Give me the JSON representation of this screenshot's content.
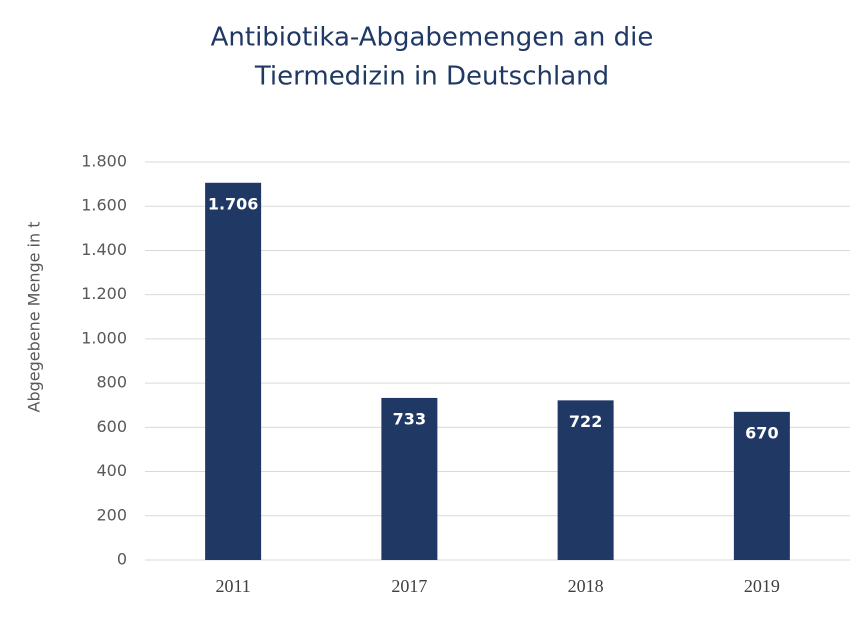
{
  "chart_data": {
    "type": "bar",
    "title": [
      "Antibiotika-Abgabemengen an die",
      "Tiermedizin in Deutschland"
    ],
    "y_label": "Abgegebene Menge in t",
    "categories": [
      "2011",
      "2017",
      "2018",
      "2019"
    ],
    "values": [
      1706,
      733,
      722,
      670
    ],
    "value_labels": [
      "1.706",
      "733",
      "722",
      "670"
    ],
    "color": "#203864",
    "ylim": [
      0,
      1800
    ],
    "yticks": [
      0,
      200,
      400,
      600,
      800,
      {
        "value": 1000,
        "label": "1.000"
      },
      {
        "value": 1200,
        "label": "1.200"
      },
      {
        "value": 1400,
        "label": "1.400"
      },
      {
        "value": 1600,
        "label": "1.600"
      },
      {
        "value": 1800,
        "label": "1.800"
      }
    ],
    "grid": true
  }
}
